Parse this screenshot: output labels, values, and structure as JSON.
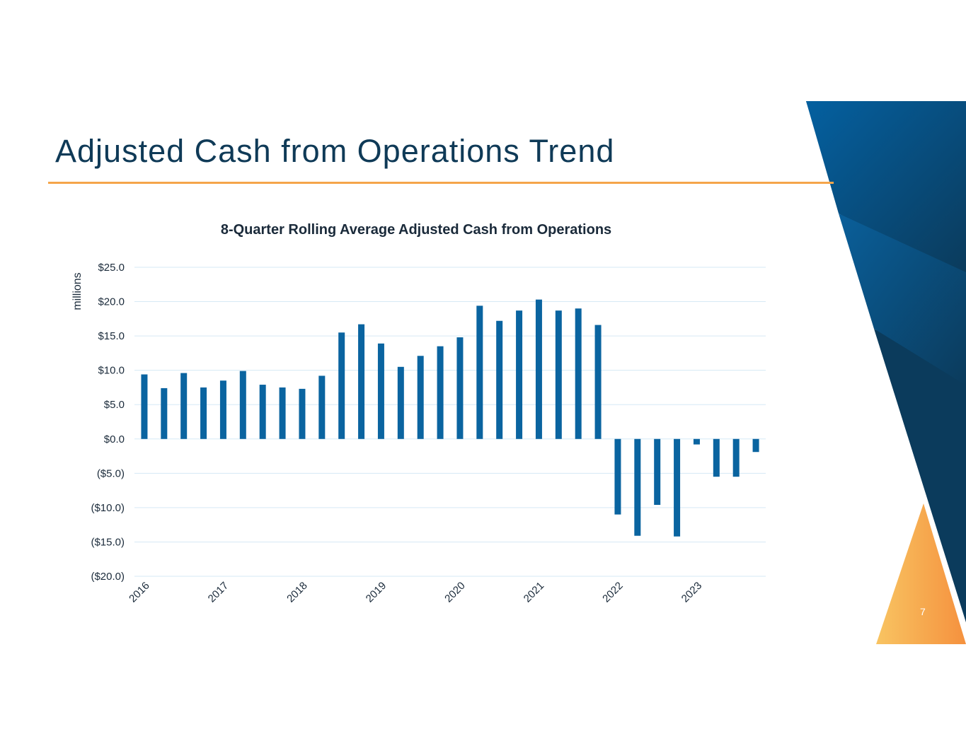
{
  "slide": {
    "title": "Adjusted Cash from Operations Trend",
    "page_number": "7",
    "colors": {
      "title": "#0f3a57",
      "accent_rule": "#f5a54a",
      "bar": "#0a64a0",
      "gridline": "#d6e9f5",
      "decor_navy": "#0b3b5c",
      "decor_blue": "#0460a0",
      "decor_orange": "#f5a54a"
    }
  },
  "chart_data": {
    "type": "bar",
    "title": "8-Quarter Rolling Average Adjusted Cash from Operations",
    "ylabel": "millions",
    "xlabel": "",
    "ylim": [
      -20,
      25
    ],
    "yticks": [
      25,
      20,
      15,
      10,
      5,
      0,
      -5,
      -10,
      -15,
      -20
    ],
    "ytick_labels": [
      "$25.0",
      "$20.0",
      "$15.0",
      "$10.0",
      "$5.0",
      "$0.0",
      "($5.0)",
      "($10.0)",
      "($15.0)",
      "($20.0)"
    ],
    "xtick_labels": [
      "2016",
      "2017",
      "2018",
      "2019",
      "2020",
      "2021",
      "2022",
      "2023"
    ],
    "grid": true,
    "legend": "none",
    "categories": [
      "2016 Q1",
      "2016 Q2",
      "2016 Q3",
      "2016 Q4",
      "2017 Q1",
      "2017 Q2",
      "2017 Q3",
      "2017 Q4",
      "2018 Q1",
      "2018 Q2",
      "2018 Q3",
      "2018 Q4",
      "2019 Q1",
      "2019 Q2",
      "2019 Q3",
      "2019 Q4",
      "2020 Q1",
      "2020 Q2",
      "2020 Q3",
      "2020 Q4",
      "2021 Q1",
      "2021 Q2",
      "2021 Q3",
      "2021 Q4",
      "2022 Q1",
      "2022 Q2",
      "2022 Q3",
      "2022 Q4",
      "2023 Q1",
      "2023 Q2",
      "2023 Q3",
      "2023 Q4"
    ],
    "values": [
      9.4,
      7.4,
      9.6,
      7.5,
      8.5,
      9.9,
      7.9,
      7.5,
      7.3,
      9.2,
      15.5,
      16.7,
      13.9,
      10.5,
      12.1,
      13.5,
      14.8,
      19.4,
      17.2,
      18.7,
      20.3,
      18.7,
      19.0,
      16.6,
      -11.0,
      -14.1,
      -9.6,
      -14.2,
      -0.8,
      -5.5,
      -5.5,
      -1.9
    ]
  }
}
